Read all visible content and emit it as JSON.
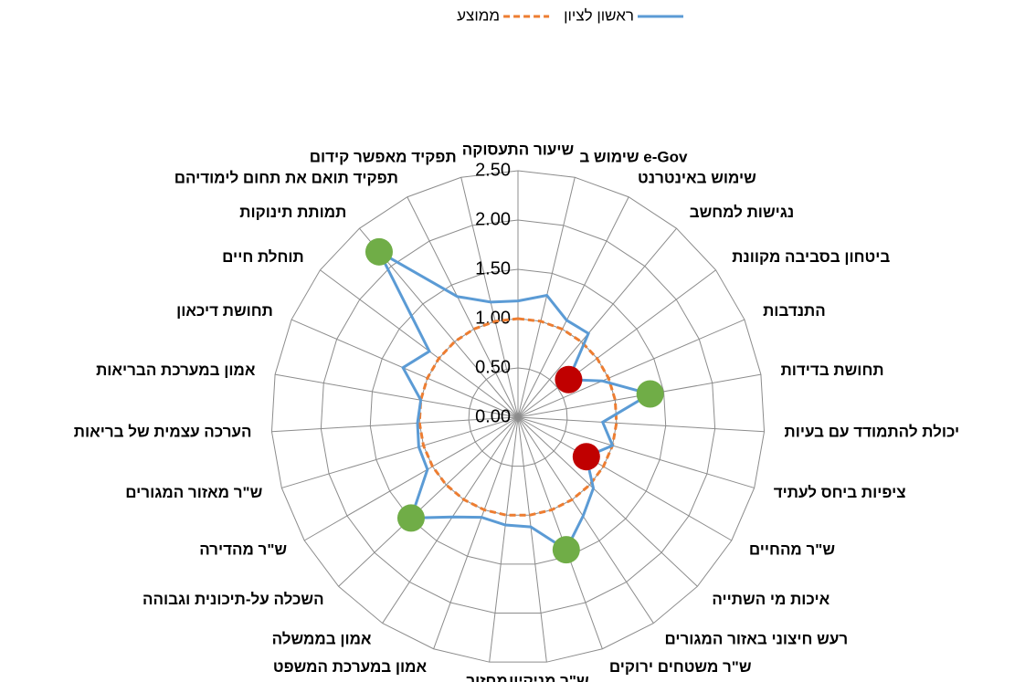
{
  "chart_data": {
    "type": "radar",
    "categories": [
      "שיעור התעסוקה",
      "שימוש ב e-Gov",
      "שימוש באינטרנט",
      "נגישות למחשב",
      "ביטחון בסביבה מקוונת",
      "התנדבות",
      "תחושת בדידות",
      "יכולת להתמודד עם בעיות",
      "ציפיות ביחס לעתיד",
      "ש\"ר מהחיים",
      "איכות מי השתייה",
      "רעש חיצוני באזור המגורים",
      "ש\"ר משטחים ירוקים",
      "ש\"ר מניקיון",
      "מחזור",
      "אמון במערכת המשפט",
      "אמון בממשלה",
      "השכלה על-תיכונית וגבוהה",
      "ש\"ר מהדירה",
      "ש\"ר מאזור המגורים",
      "הערכה עצמית של בריאות",
      "אמון במערכת הבריאות",
      "תחושת דיכאון",
      "תוחלת חיים",
      "תמותת תינוקות",
      "תפקיד תואם את תחום לימודיהם",
      "תפקיד מאפשר קידום"
    ],
    "series": [
      {
        "name": "ראשון לציון",
        "color": "#5b9bd5",
        "dash": false,
        "values": [
          1.18,
          1.27,
          1.1,
          1.11,
          0.64,
          0.93,
          1.36,
          0.86,
          1.0,
          0.8,
          1.05,
          1.2,
          1.43,
          1.12,
          1.1,
          1.08,
          1.21,
          1.49,
          1.06,
          1.05,
          1.02,
          1.0,
          1.27,
          1.12,
          2.19,
          1.37,
          1.2
        ],
        "marker_colors": [
          null,
          null,
          null,
          null,
          "#c00000",
          null,
          "#70ad47",
          null,
          null,
          "#c00000",
          null,
          null,
          "#70ad47",
          null,
          null,
          null,
          null,
          "#70ad47",
          null,
          null,
          null,
          null,
          null,
          null,
          "#70ad47",
          null,
          null
        ]
      },
      {
        "name": "ממוצע",
        "color": "#ed7d31",
        "dash": true,
        "values": [
          1,
          1,
          1,
          1,
          1,
          1,
          1,
          1,
          1,
          1,
          1,
          1,
          1,
          1,
          1,
          1,
          1,
          1,
          1,
          1,
          1,
          1,
          1,
          1,
          1,
          1,
          1
        ]
      }
    ],
    "rlim": [
      0,
      2.5
    ],
    "rticks": [
      {
        "value": 0,
        "label": "0.00"
      },
      {
        "value": 0.5,
        "label": "0.50"
      },
      {
        "value": 1,
        "label": "1.00"
      },
      {
        "value": 1.5,
        "label": "1.50"
      },
      {
        "value": 2,
        "label": "2.00"
      },
      {
        "value": 2.5,
        "label": "2.50"
      }
    ],
    "legend": "top"
  }
}
